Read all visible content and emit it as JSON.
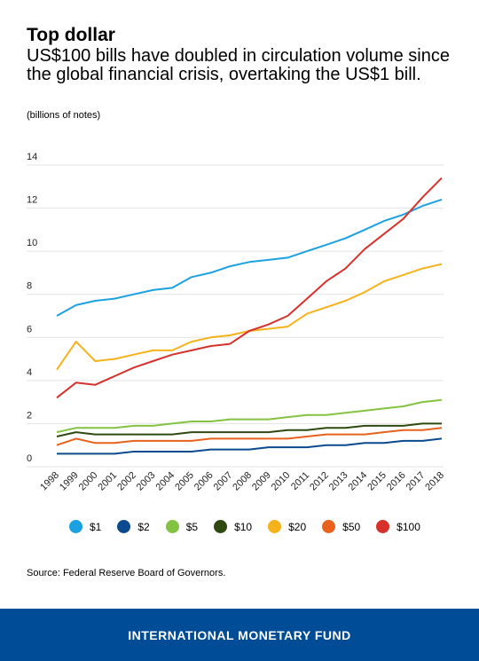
{
  "header": {
    "title": "Top dollar",
    "subtitle": "US$100 bills have doubled in circulation volume since the global financial crisis, overtaking the US$1 bill.",
    "unit": "(billions of notes)"
  },
  "chart_data": {
    "type": "line",
    "x": [
      "1998",
      "1999",
      "2000",
      "2001",
      "2002",
      "2003",
      "2004",
      "2005",
      "2006",
      "2007",
      "2008",
      "2009",
      "2010",
      "2011",
      "2012",
      "2013",
      "2014",
      "2015",
      "2016",
      "2017",
      "2018"
    ],
    "ylim": [
      0,
      14
    ],
    "yticks": [
      0,
      2,
      4,
      6,
      8,
      10,
      12,
      14
    ],
    "grid": true,
    "legend_position": "bottom",
    "series": [
      {
        "name": "$1",
        "color": "#1ba1e2",
        "values": [
          7.0,
          7.5,
          7.7,
          7.8,
          8.0,
          8.2,
          8.3,
          8.8,
          9.0,
          9.3,
          9.5,
          9.6,
          9.7,
          10.0,
          10.3,
          10.6,
          11.0,
          11.4,
          11.7,
          12.1,
          12.4
        ]
      },
      {
        "name": "$2",
        "color": "#0b4a8f",
        "values": [
          0.6,
          0.6,
          0.6,
          0.6,
          0.7,
          0.7,
          0.7,
          0.7,
          0.8,
          0.8,
          0.8,
          0.9,
          0.9,
          0.9,
          1.0,
          1.0,
          1.1,
          1.1,
          1.2,
          1.2,
          1.3
        ]
      },
      {
        "name": "$5",
        "color": "#84c341",
        "values": [
          1.6,
          1.8,
          1.8,
          1.8,
          1.9,
          1.9,
          2.0,
          2.1,
          2.1,
          2.2,
          2.2,
          2.2,
          2.3,
          2.4,
          2.4,
          2.5,
          2.6,
          2.7,
          2.8,
          3.0,
          3.1
        ]
      },
      {
        "name": "$10",
        "color": "#2e4a10",
        "values": [
          1.4,
          1.6,
          1.5,
          1.5,
          1.5,
          1.5,
          1.5,
          1.6,
          1.6,
          1.6,
          1.6,
          1.6,
          1.7,
          1.7,
          1.8,
          1.8,
          1.9,
          1.9,
          1.9,
          2.0,
          2.0
        ]
      },
      {
        "name": "$20",
        "color": "#f6b21b",
        "values": [
          4.5,
          5.8,
          4.9,
          5.0,
          5.2,
          5.4,
          5.4,
          5.8,
          6.0,
          6.1,
          6.3,
          6.4,
          6.5,
          7.1,
          7.4,
          7.7,
          8.1,
          8.6,
          8.9,
          9.2,
          9.4
        ]
      },
      {
        "name": "$50",
        "color": "#e8621d",
        "values": [
          1.0,
          1.3,
          1.1,
          1.1,
          1.2,
          1.2,
          1.2,
          1.2,
          1.3,
          1.3,
          1.3,
          1.3,
          1.3,
          1.4,
          1.5,
          1.5,
          1.5,
          1.6,
          1.7,
          1.7,
          1.8
        ]
      },
      {
        "name": "$100",
        "color": "#d7312b",
        "values": [
          3.2,
          3.9,
          3.8,
          4.2,
          4.6,
          4.9,
          5.2,
          5.4,
          5.6,
          5.7,
          6.3,
          6.6,
          7.0,
          7.8,
          8.6,
          9.2,
          10.1,
          10.8,
          11.5,
          12.5,
          13.4
        ]
      }
    ]
  },
  "source": "Source: Federal Reserve Board of Governors.",
  "footer": {
    "org": "INTERNATIONAL MONETARY FUND",
    "background": "#004c97"
  }
}
